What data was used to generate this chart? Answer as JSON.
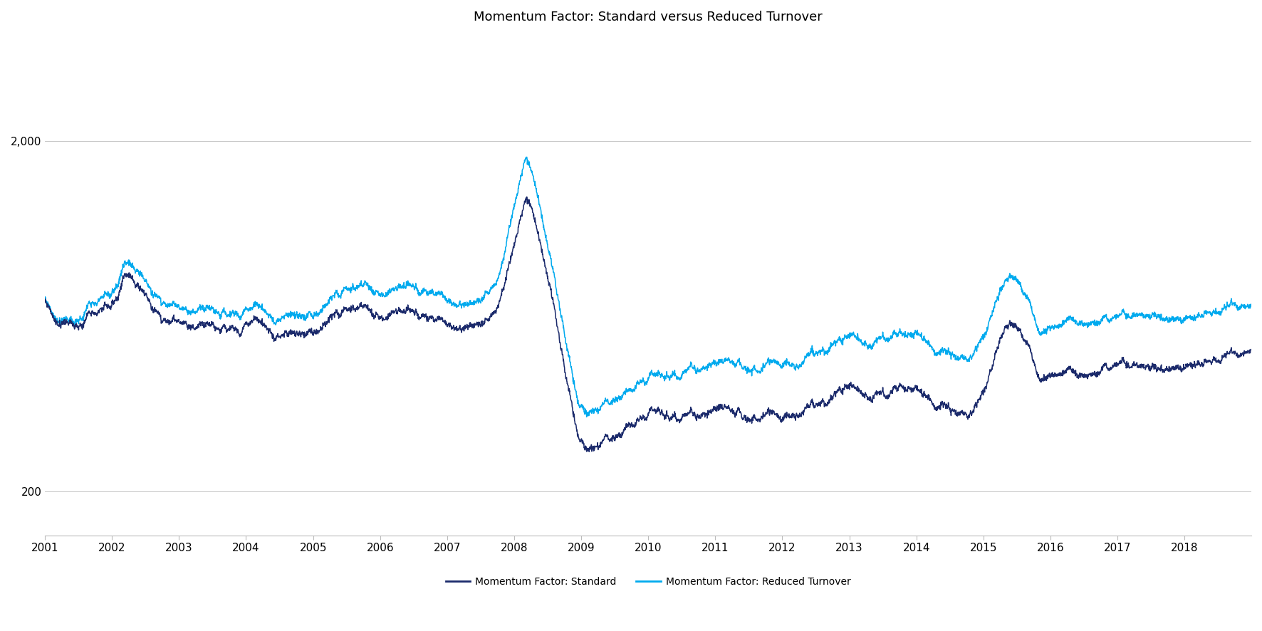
{
  "title": "Momentum Factor: Standard versus Reduced Turnover",
  "title_fontsize": 13,
  "line1_label": "Momentum Factor: Standard",
  "line2_label": "Momentum Factor: Reduced Turnover",
  "line1_color": "#1b2a6b",
  "line2_color": "#00aaee",
  "ylim_low": 150,
  "ylim_high": 4000,
  "yticks": [
    200,
    2000
  ],
  "ytick_labels": [
    "200",
    "2,000"
  ],
  "xtick_years": [
    2001,
    2002,
    2003,
    2004,
    2005,
    2006,
    2007,
    2008,
    2009,
    2010,
    2011,
    2012,
    2013,
    2014,
    2015,
    2016,
    2017,
    2018
  ],
  "background_color": "#ffffff",
  "line_width": 1.1,
  "legend_fontsize": 10,
  "spine_color": "#bbbbbb"
}
